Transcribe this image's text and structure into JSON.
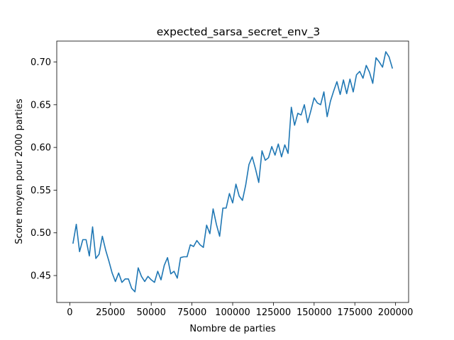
{
  "chart_data": {
    "type": "line",
    "title": "expected_sarsa_secret_env_3",
    "xlabel": "Nombre de parties",
    "ylabel": "Score moyen pour 2000 parties",
    "xlim": [
      -8000,
      208000
    ],
    "ylim": [
      0.4185,
      0.7245
    ],
    "xticks": [
      0,
      25000,
      50000,
      75000,
      100000,
      125000,
      150000,
      175000,
      200000
    ],
    "xtick_labels": [
      "0",
      "25000",
      "50000",
      "75000",
      "100000",
      "125000",
      "150000",
      "175000",
      "200000"
    ],
    "yticks": [
      0.45,
      0.5,
      0.55,
      0.6,
      0.65,
      0.7
    ],
    "ytick_labels": [
      "0.45",
      "0.50",
      "0.55",
      "0.60",
      "0.65",
      "0.70"
    ],
    "grid": false,
    "legend": "none",
    "series": [
      {
        "color": "#1f77b4",
        "x": [
          2000,
          4000,
          6000,
          8000,
          10000,
          12000,
          14000,
          16000,
          18000,
          20000,
          22000,
          24000,
          26000,
          28000,
          30000,
          32000,
          34000,
          36000,
          38000,
          40000,
          42000,
          44000,
          46000,
          48000,
          50000,
          52000,
          54000,
          56000,
          58000,
          60000,
          62000,
          64000,
          66000,
          68000,
          70000,
          72000,
          74000,
          76000,
          78000,
          80000,
          82000,
          84000,
          86000,
          88000,
          90000,
          92000,
          94000,
          96000,
          98000,
          100000,
          102000,
          104000,
          106000,
          108000,
          110000,
          112000,
          114000,
          116000,
          118000,
          120000,
          122000,
          124000,
          126000,
          128000,
          130000,
          132000,
          134000,
          136000,
          138000,
          140000,
          142000,
          144000,
          146000,
          148000,
          150000,
          152000,
          154000,
          156000,
          158000,
          160000,
          162000,
          164000,
          166000,
          168000,
          170000,
          172000,
          174000,
          176000,
          178000,
          180000,
          182000,
          184000,
          186000,
          188000,
          190000,
          192000,
          194000,
          196000,
          198000
        ],
        "y": [
          0.488,
          0.51,
          0.478,
          0.492,
          0.492,
          0.473,
          0.507,
          0.47,
          0.475,
          0.496,
          0.48,
          0.467,
          0.453,
          0.443,
          0.453,
          0.442,
          0.446,
          0.446,
          0.435,
          0.431,
          0.459,
          0.449,
          0.443,
          0.449,
          0.445,
          0.442,
          0.455,
          0.445,
          0.462,
          0.471,
          0.452,
          0.455,
          0.447,
          0.471,
          0.472,
          0.472,
          0.486,
          0.484,
          0.491,
          0.486,
          0.483,
          0.509,
          0.499,
          0.528,
          0.51,
          0.496,
          0.529,
          0.529,
          0.546,
          0.535,
          0.557,
          0.543,
          0.538,
          0.556,
          0.58,
          0.589,
          0.575,
          0.559,
          0.596,
          0.585,
          0.588,
          0.601,
          0.591,
          0.604,
          0.589,
          0.603,
          0.593,
          0.647,
          0.626,
          0.64,
          0.638,
          0.65,
          0.629,
          0.643,
          0.658,
          0.652,
          0.65,
          0.665,
          0.636,
          0.654,
          0.666,
          0.677,
          0.662,
          0.679,
          0.663,
          0.68,
          0.665,
          0.685,
          0.689,
          0.681,
          0.696,
          0.688,
          0.675,
          0.705,
          0.7,
          0.694,
          0.712,
          0.706,
          0.693
        ]
      }
    ]
  }
}
